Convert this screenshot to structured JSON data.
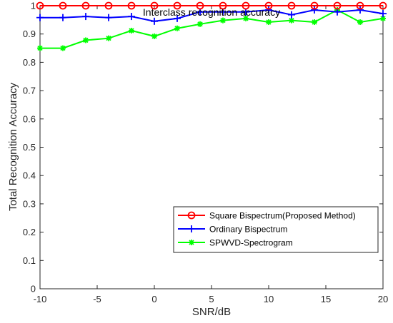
{
  "chart_data": {
    "type": "line",
    "title": "Interclass recognition accuracy",
    "xlabel": "SNR/dB",
    "ylabel": "Total Recognition Accuracy",
    "xlim": [
      -10,
      20
    ],
    "ylim": [
      0,
      1
    ],
    "x_ticks": [
      "-10",
      "-5",
      "0",
      "5",
      "10",
      "15",
      "20"
    ],
    "y_ticks": [
      "0",
      "0.1",
      "0.2",
      "0.3",
      "0.4",
      "0.5",
      "0.6",
      "0.7",
      "0.8",
      "0.9",
      "1"
    ],
    "grid": false,
    "legend_position": "bottom-right",
    "x": [
      -10,
      -8,
      -6,
      -4,
      -2,
      0,
      2,
      4,
      6,
      8,
      10,
      12,
      14,
      16,
      18,
      20
    ],
    "series": [
      {
        "name": "Square Bispectrum(Proposed Method)",
        "color": "#ff0000",
        "marker": "circle",
        "values": [
          1.0,
          1.0,
          1.0,
          1.0,
          1.0,
          1.0,
          1.0,
          1.0,
          1.0,
          1.0,
          1.0,
          1.0,
          1.0,
          1.0,
          1.0,
          1.0
        ]
      },
      {
        "name": "Ordinary Bispectrum",
        "color": "#0000ff",
        "marker": "plus",
        "values": [
          0.958,
          0.958,
          0.962,
          0.958,
          0.962,
          0.945,
          0.955,
          0.978,
          0.978,
          0.978,
          0.985,
          0.968,
          0.985,
          0.978,
          0.985,
          0.972
        ]
      },
      {
        "name": "SPWVD-Spectrogram",
        "color": "#00ff00",
        "marker": "asterisk",
        "values": [
          0.85,
          0.85,
          0.878,
          0.885,
          0.912,
          0.892,
          0.92,
          0.935,
          0.948,
          0.955,
          0.942,
          0.948,
          0.942,
          0.985,
          0.942,
          0.955
        ]
      }
    ]
  }
}
